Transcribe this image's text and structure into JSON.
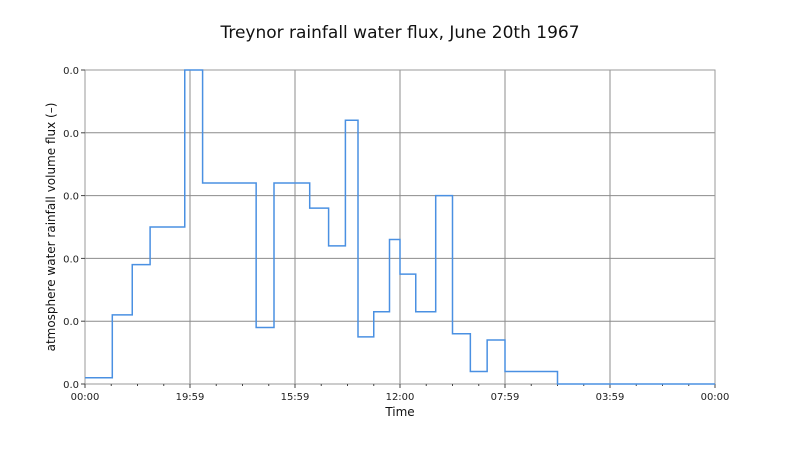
{
  "chart_data": {
    "type": "line",
    "step": true,
    "title": "Treynor rainfall water flux, June 20th 1967",
    "xlabel": "Time",
    "ylabel": "atmosphere water  rainfall volume flux (–)",
    "x_ticks": [
      "00:00",
      "19:59",
      "15:59",
      "12:00",
      "07:59",
      "03:59",
      "00:00"
    ],
    "y_ticks": [
      "0.0",
      "0.0",
      "0.0",
      "0.0",
      "0.0",
      "0.0"
    ],
    "ylim": [
      0,
      5
    ],
    "xlim": [
      0,
      6
    ],
    "grid": true,
    "series": [
      {
        "color": "#4a90e2",
        "x": [
          0,
          0.26,
          0.45,
          0.62,
          0.95,
          1.12,
          1.63,
          1.8,
          2.14,
          2.32,
          2.48,
          2.6,
          2.75,
          2.9,
          3.0,
          3.15,
          3.34,
          3.5,
          3.67,
          3.83,
          4.0,
          4.28,
          4.5,
          4.73
        ],
        "y": [
          0.1,
          1.1,
          1.9,
          2.5,
          5.0,
          3.2,
          0.9,
          3.2,
          2.8,
          2.2,
          4.2,
          0.75,
          1.15,
          2.3,
          1.75,
          1.15,
          3.0,
          0.8,
          0.2,
          0.7,
          0.2,
          0.2,
          0.0,
          0.0
        ],
        "x_end": 6
      }
    ]
  }
}
